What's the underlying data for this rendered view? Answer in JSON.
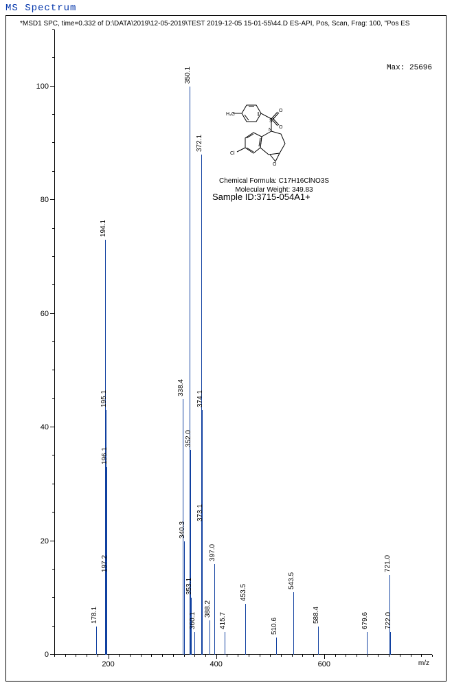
{
  "title": "MS Spectrum",
  "subtitle": "*MSD1 SPC, time=0.332 of D:\\DATA\\2019\\12-05-2019\\TEST 2019-12-05 15-01-55\\44.D    ES-API, Pos, Scan, Frag: 100, \"Pos ES",
  "max_label": "Max: 25696",
  "chem_formula": "Chemical Formula: C17H16ClNO3S",
  "mol_weight": "Molecular Weight: 349.83",
  "sample_id": "Sample ID:3715-054A1+",
  "x_axis_title": "m/z",
  "chart": {
    "type": "mass-spectrum",
    "xlim": [
      100,
      800
    ],
    "ylim": [
      0,
      110
    ],
    "x_ticks": [
      200,
      400,
      600
    ],
    "x_minor_step": 20,
    "y_ticks": [
      0,
      20,
      40,
      60,
      80,
      100
    ],
    "y_minor_step": 5,
    "bar_color": "#1040a0",
    "axis_color": "#000000",
    "background_color": "#ffffff",
    "tick_fontsize": 11,
    "peak_label_fontsize": 10,
    "peaks": [
      {
        "mz": 178.1,
        "intensity": 5,
        "label": "178.1"
      },
      {
        "mz": 194.1,
        "intensity": 73,
        "label": "194.1"
      },
      {
        "mz": 195.1,
        "intensity": 43,
        "label": "195.1"
      },
      {
        "mz": 196.1,
        "intensity": 33,
        "label": "196.1"
      },
      {
        "mz": 197.2,
        "intensity": 14,
        "label": "197.2"
      },
      {
        "mz": 338.4,
        "intensity": 45,
        "label": "338.4"
      },
      {
        "mz": 340.3,
        "intensity": 20,
        "label": "340.3"
      },
      {
        "mz": 350.1,
        "intensity": 100,
        "label": "350.1"
      },
      {
        "mz": 352.0,
        "intensity": 36,
        "label": "352.0"
      },
      {
        "mz": 353.1,
        "intensity": 10,
        "label": "353.1"
      },
      {
        "mz": 360.1,
        "intensity": 4,
        "label": "360.1"
      },
      {
        "mz": 372.1,
        "intensity": 88,
        "label": "372.1"
      },
      {
        "mz": 373.1,
        "intensity": 23,
        "label": "373.1"
      },
      {
        "mz": 374.1,
        "intensity": 43,
        "label": "374.1"
      },
      {
        "mz": 388.2,
        "intensity": 6,
        "label": "388.2"
      },
      {
        "mz": 397.0,
        "intensity": 16,
        "label": "397.0"
      },
      {
        "mz": 415.7,
        "intensity": 4,
        "label": "415.7"
      },
      {
        "mz": 453.5,
        "intensity": 9,
        "label": "453.5"
      },
      {
        "mz": 510.6,
        "intensity": 3,
        "label": "510.6"
      },
      {
        "mz": 543.5,
        "intensity": 11,
        "label": "543.5"
      },
      {
        "mz": 588.4,
        "intensity": 5,
        "label": "588.4"
      },
      {
        "mz": 679.6,
        "intensity": 4,
        "label": "679.6"
      },
      {
        "mz": 721.0,
        "intensity": 14,
        "label": "721.0"
      },
      {
        "mz": 722.0,
        "intensity": 4,
        "label": "722.0"
      }
    ]
  }
}
